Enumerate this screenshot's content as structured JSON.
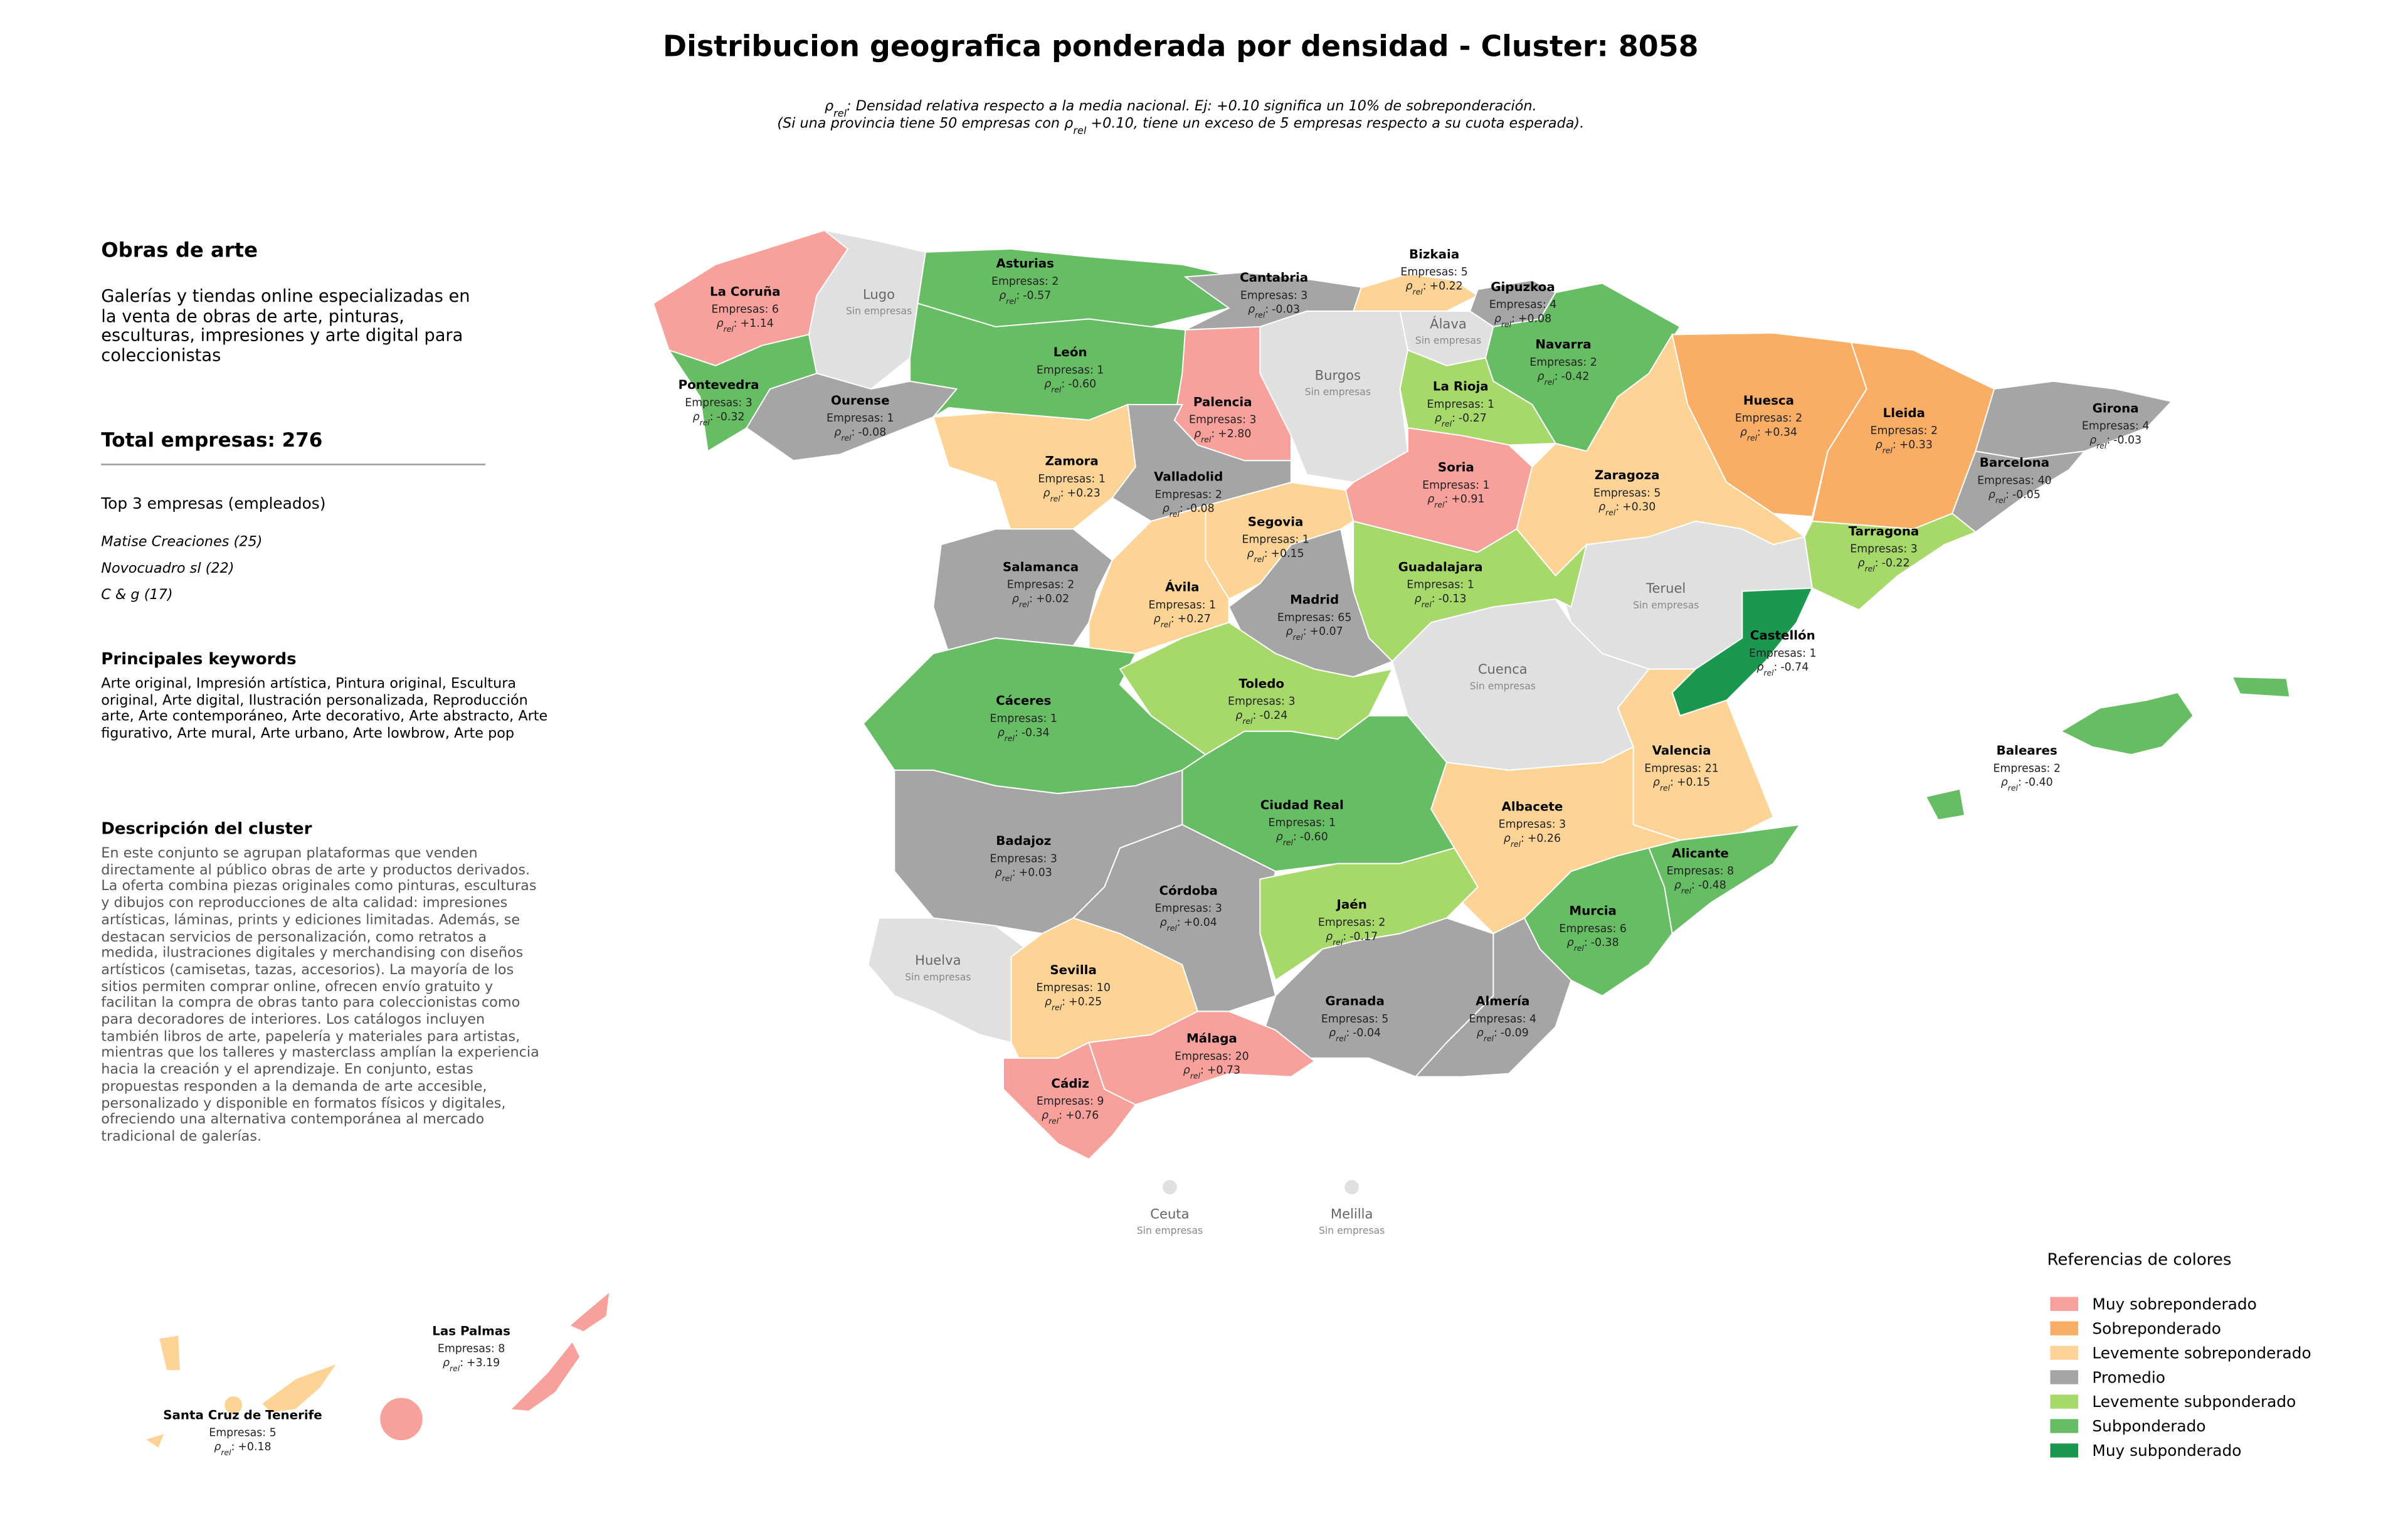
{
  "title": "Distribucion geografica ponderada por densidad - Cluster: 8058",
  "rho_symbol": "ρ",
  "rho_subscript": "rel",
  "rho_separator": ":",
  "subtitle_1": " Densidad relativa respecto a la media nacional. Ej: +0.10 significa un 10% de sobreponderación.",
  "subtitle_2_start": "(Si una provincia tiene 50 empresas con ",
  "subtitle_2_end": " +0.10, tiene un exceso de 5 empresas respecto a su cuota esperada).",
  "panel": {
    "heading": "Obras de arte",
    "summary": "Galerías y tiendas online especializadas en la venta de obras de arte, pinturas, esculturas, impresiones y arte digital para coleccionistas",
    "total": "Total empresas: 276",
    "top_title": "Top 3 empresas (empleados)",
    "top": [
      "Matise Creaciones (25)",
      "Novocuadro sl (22)",
      "C & g (17)"
    ],
    "keywords_title": "Principales keywords",
    "keywords": "Arte original, Impresión artística, Pintura original, Escultura original, Arte digital, Ilustración personalizada, Reproducción arte, Arte contemporáneo, Arte decorativo, Arte abstracto, Arte figurativo, Arte mural, Arte urbano, Arte lowbrow, Arte pop",
    "description_title": "Descripción del cluster",
    "description": "En este conjunto se agrupan plataformas que venden directamente al público obras de arte y productos derivados. La oferta combina piezas originales como pinturas, esculturas y dibujos con reproducciones de alta calidad: impresiones artísticas, láminas, prints y ediciones limitadas. Además, se destacan servicios de personalización, como retratos a medida, ilustraciones digitales y merchandising con diseños artísticos (camisetas, tazas, accesorios). La mayoría de los sitios permiten comprar online, ofrecen envío gratuito y facilitan la compra de obras tanto para coleccionistas como para decoradores de interiores. Los catálogos incluyen también libros de arte, papelería y materiales para artistas, mientras que los talleres y masterclass amplían la experiencia hacia la creación y el aprendizaje. En conjunto, estas propuestas responden a la demanda de arte accesible, personalizado y disponible en formatos físicos y digitales, ofreciendo una alternativa contemporánea al mercado tradicional de galerías."
  },
  "no_data_label": "Sin empresas",
  "no_data_color": "#e0e0e0",
  "provinces": [
    {
      "name": "La Coruña",
      "empresas": "Empresas: 6",
      "rho": "+1.14",
      "color": "#f8a09b"
    },
    {
      "name": "Lugo",
      "color": "#e0e0e0"
    },
    {
      "name": "Pontevedra",
      "empresas": "Empresas: 3",
      "rho": "-0.32",
      "color": "#66bd63"
    },
    {
      "name": "Ourense",
      "empresas": "Empresas: 1",
      "rho": "-0.08",
      "color": "#a5a5a5"
    },
    {
      "name": "Asturias",
      "empresas": "Empresas: 2",
      "rho": "-0.57",
      "color": "#66bd63"
    },
    {
      "name": "León",
      "empresas": "Empresas: 1",
      "rho": "-0.60",
      "color": "#66bd63"
    },
    {
      "name": "Cantabria",
      "empresas": "Empresas: 3",
      "rho": "-0.03",
      "color": "#a5a5a5"
    },
    {
      "name": "Bizkaia",
      "empresas": "Empresas: 5",
      "rho": "+0.22",
      "color": "#fdd496"
    },
    {
      "name": "Gipuzkoa",
      "empresas": "Empresas: 4",
      "rho": "+0.08",
      "color": "#a5a5a5"
    },
    {
      "name": "Álava",
      "color": "#e0e0e0"
    },
    {
      "name": "Navarra",
      "empresas": "Empresas: 2",
      "rho": "-0.42",
      "color": "#66bd63"
    },
    {
      "name": "Burgos",
      "color": "#e0e0e0"
    },
    {
      "name": "Palencia",
      "empresas": "Empresas: 3",
      "rho": "+2.80",
      "color": "#f8a09b"
    },
    {
      "name": "La Rioja",
      "empresas": "Empresas: 1",
      "rho": "-0.27",
      "color": "#a6d96a"
    },
    {
      "name": "Soria",
      "empresas": "Empresas: 1",
      "rho": "+0.91",
      "color": "#f8a09b"
    },
    {
      "name": "Zaragoza",
      "empresas": "Empresas: 5",
      "rho": "+0.30",
      "color": "#fdd496"
    },
    {
      "name": "Huesca",
      "empresas": "Empresas: 2",
      "rho": "+0.34",
      "color": "#f9ad65"
    },
    {
      "name": "Lleida",
      "empresas": "Empresas: 2",
      "rho": "+0.33",
      "color": "#f9ad65"
    },
    {
      "name": "Girona",
      "empresas": "Empresas: 4",
      "rho": "-0.03",
      "color": "#a5a5a5"
    },
    {
      "name": "Barcelona",
      "empresas": "Empresas: 40",
      "rho": "-0.05",
      "color": "#a5a5a5"
    },
    {
      "name": "Tarragona",
      "empresas": "Empresas: 3",
      "rho": "-0.22",
      "color": "#a6d96a"
    },
    {
      "name": "Teruel",
      "color": "#e0e0e0"
    },
    {
      "name": "Castellón",
      "empresas": "Empresas: 1",
      "rho": "-0.74",
      "color": "#1a9850"
    },
    {
      "name": "Valencia",
      "empresas": "Empresas: 21",
      "rho": "+0.15",
      "color": "#fdd496"
    },
    {
      "name": "Cuenca",
      "color": "#e0e0e0"
    },
    {
      "name": "Guadalajara",
      "empresas": "Empresas: 1",
      "rho": "-0.13",
      "color": "#a6d96a"
    },
    {
      "name": "Madrid",
      "empresas": "Empresas: 65",
      "rho": "+0.07",
      "color": "#a5a5a5"
    },
    {
      "name": "Segovia",
      "empresas": "Empresas: 1",
      "rho": "+0.15",
      "color": "#fdd496"
    },
    {
      "name": "Valladolid",
      "empresas": "Empresas: 2",
      "rho": "-0.08",
      "color": "#a5a5a5"
    },
    {
      "name": "Zamora",
      "empresas": "Empresas: 1",
      "rho": "+0.23",
      "color": "#fdd496"
    },
    {
      "name": "Salamanca",
      "empresas": "Empresas: 2",
      "rho": "+0.02",
      "color": "#a5a5a5"
    },
    {
      "name": "Ávila",
      "empresas": "Empresas: 1",
      "rho": "+0.27",
      "color": "#fdd496"
    },
    {
      "name": "Cáceres",
      "empresas": "Empresas: 1",
      "rho": "-0.34",
      "color": "#66bd63"
    },
    {
      "name": "Toledo",
      "empresas": "Empresas: 3",
      "rho": "-0.24",
      "color": "#a6d96a"
    },
    {
      "name": "Ciudad Real",
      "empresas": "Empresas: 1",
      "rho": "-0.60",
      "color": "#66bd63"
    },
    {
      "name": "Albacete",
      "empresas": "Empresas: 3",
      "rho": "+0.26",
      "color": "#fdd496"
    },
    {
      "name": "Badajoz",
      "empresas": "Empresas: 3",
      "rho": "+0.03",
      "color": "#a5a5a5"
    },
    {
      "name": "Huelva",
      "color": "#e0e0e0"
    },
    {
      "name": "Sevilla",
      "empresas": "Empresas: 10",
      "rho": "+0.25",
      "color": "#fdd496"
    },
    {
      "name": "Córdoba",
      "empresas": "Empresas: 3",
      "rho": "+0.04",
      "color": "#a5a5a5"
    },
    {
      "name": "Jaén",
      "empresas": "Empresas: 2",
      "rho": "-0.17",
      "color": "#a6d96a"
    },
    {
      "name": "Granada",
      "empresas": "Empresas: 5",
      "rho": "-0.04",
      "color": "#a5a5a5"
    },
    {
      "name": "Almería",
      "empresas": "Empresas: 4",
      "rho": "-0.09",
      "color": "#a5a5a5"
    },
    {
      "name": "Murcia",
      "empresas": "Empresas: 6",
      "rho": "-0.38",
      "color": "#66bd63"
    },
    {
      "name": "Alicante",
      "empresas": "Empresas: 8",
      "rho": "-0.48",
      "color": "#66bd63"
    },
    {
      "name": "Málaga",
      "empresas": "Empresas: 20",
      "rho": "+0.73",
      "color": "#f8a09b"
    },
    {
      "name": "Cádiz",
      "empresas": "Empresas: 9",
      "rho": "+0.76",
      "color": "#f8a09b"
    },
    {
      "name": "Baleares",
      "empresas": "Empresas: 2",
      "rho": "-0.40",
      "color": "#66bd63"
    },
    {
      "name": "Las Palmas",
      "empresas": "Empresas: 8",
      "rho": "+3.19",
      "color": "#f8a09b"
    },
    {
      "name": "Santa Cruz de Tenerife",
      "empresas": "Empresas: 5",
      "rho": "+0.18",
      "color": "#fdd496"
    },
    {
      "name": "Ceuta",
      "color": "#e0e0e0"
    },
    {
      "name": "Melilla",
      "color": "#e0e0e0"
    }
  ],
  "legend": {
    "title": "Referencias de colores",
    "items": [
      {
        "label": "Muy sobreponderado",
        "color": "#f8a09b"
      },
      {
        "label": "Sobreponderado",
        "color": "#f9ad65"
      },
      {
        "label": "Levemente sobreponderado",
        "color": "#fdd496"
      },
      {
        "label": "Promedio",
        "color": "#a5a5a5"
      },
      {
        "label": "Levemente subponderado",
        "color": "#a6d96a"
      },
      {
        "label": "Subponderado",
        "color": "#66bd63"
      },
      {
        "label": "Muy subponderado",
        "color": "#1a9850"
      }
    ]
  }
}
